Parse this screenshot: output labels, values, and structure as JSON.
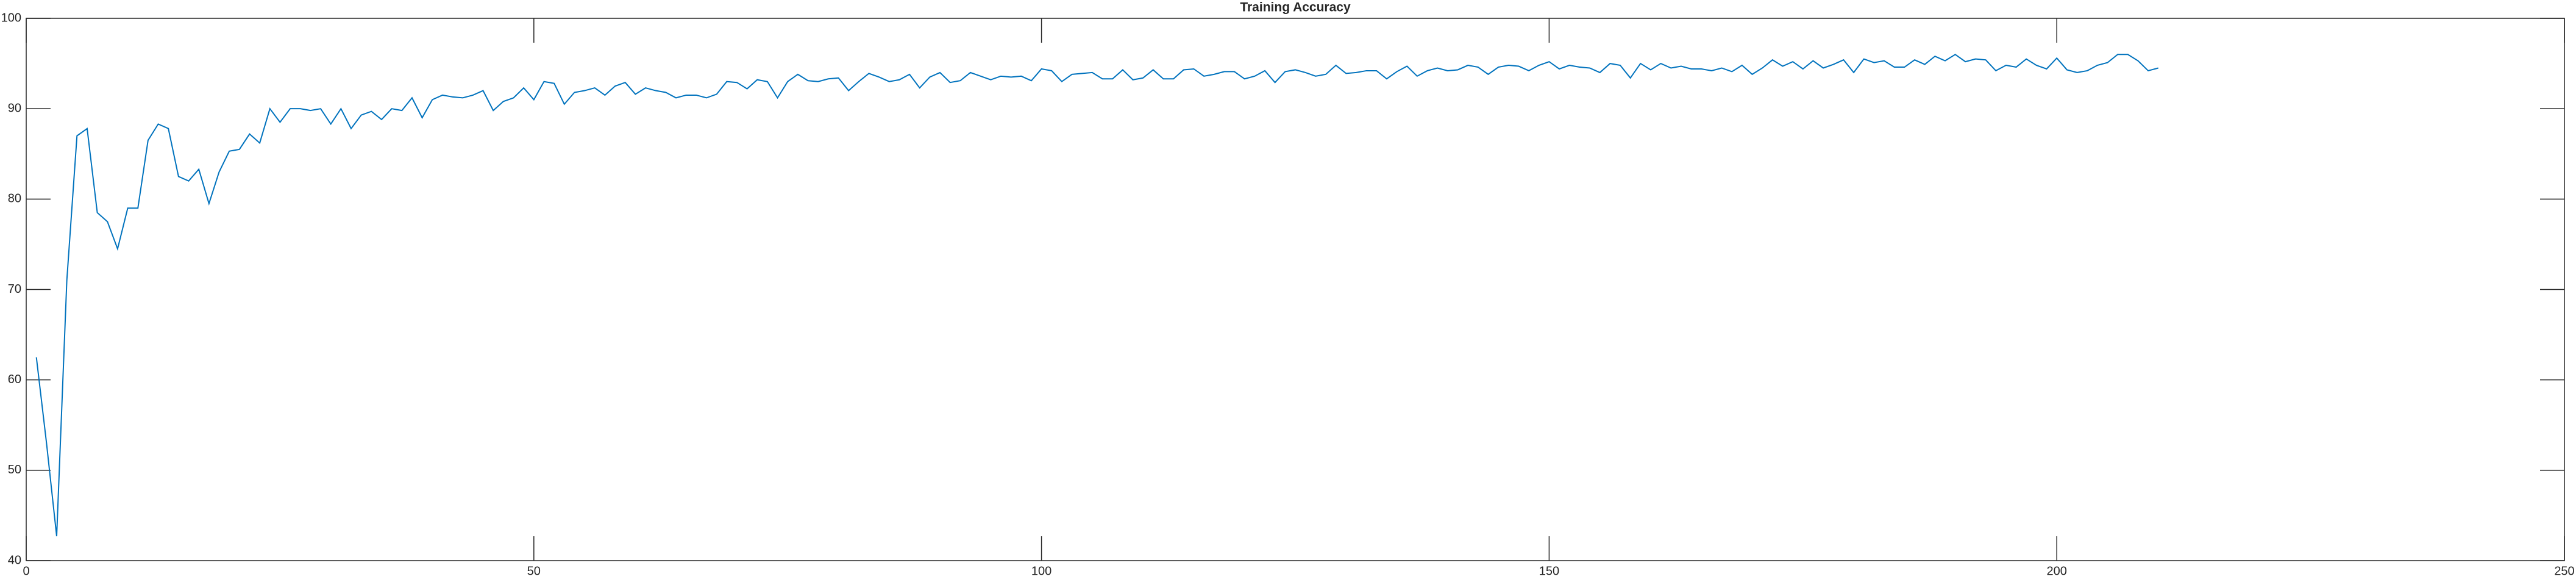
{
  "chart_data": {
    "type": "line",
    "title": "Training Accuracy",
    "x": [
      1,
      2,
      3,
      4,
      5,
      6,
      7,
      8,
      9,
      10,
      11,
      12,
      13,
      14,
      15,
      16,
      17,
      18,
      19,
      20,
      21,
      22,
      23,
      24,
      25,
      26,
      27,
      28,
      29,
      30,
      31,
      32,
      33,
      34,
      35,
      36,
      37,
      38,
      39,
      40,
      41,
      42,
      43,
      44,
      45,
      46,
      47,
      48,
      49,
      50,
      51,
      52,
      53,
      54,
      55,
      56,
      57,
      58,
      59,
      60,
      61,
      62,
      63,
      64,
      65,
      66,
      67,
      68,
      69,
      70,
      71,
      72,
      73,
      74,
      75,
      76,
      77,
      78,
      79,
      80,
      81,
      82,
      83,
      84,
      85,
      86,
      87,
      88,
      89,
      90,
      91,
      92,
      93,
      94,
      95,
      96,
      97,
      98,
      99,
      100,
      101,
      102,
      103,
      104,
      105,
      106,
      107,
      108,
      109,
      110,
      111,
      112,
      113,
      114,
      115,
      116,
      117,
      118,
      119,
      120,
      121,
      122,
      123,
      124,
      125,
      126,
      127,
      128,
      129,
      130,
      131,
      132,
      133,
      134,
      135,
      136,
      137,
      138,
      139,
      140,
      141,
      142,
      143,
      144,
      145,
      146,
      147,
      148,
      149,
      150,
      151,
      152,
      153,
      154,
      155,
      156,
      157,
      158,
      159,
      160,
      161,
      162,
      163,
      164,
      165,
      166,
      167,
      168,
      169,
      170,
      171,
      172,
      173,
      174,
      175,
      176,
      177,
      178,
      179,
      180,
      181,
      182,
      183,
      184,
      185,
      186,
      187,
      188,
      189,
      190,
      191,
      192,
      193,
      194,
      195,
      196,
      197,
      198,
      199,
      200,
      201,
      202,
      203,
      204,
      205,
      206,
      207,
      208,
      209,
      210
    ],
    "values": [
      62.5,
      53,
      42.7,
      71,
      87,
      87.8,
      78.5,
      77.5,
      74.5,
      79,
      79,
      86.5,
      88.3,
      87.8,
      82.5,
      82,
      83.3,
      79.5,
      83,
      85.3,
      85.5,
      87.2,
      86.2,
      90,
      88.5,
      90,
      90,
      89.8,
      90,
      88.3,
      90,
      87.8,
      89.3,
      89.7,
      88.8,
      90,
      89.8,
      91.2,
      89,
      91,
      91.5,
      91.3,
      91.2,
      91.5,
      92,
      89.8,
      90.8,
      91.2,
      92.3,
      91,
      93,
      92.8,
      90.5,
      91.8,
      92,
      92.3,
      91.5,
      92.5,
      92.9,
      91.6,
      92.3,
      92,
      91.8,
      91.2,
      91.5,
      91.5,
      91.2,
      91.6,
      93,
      92.9,
      92.2,
      93.2,
      93,
      91.2,
      93,
      93.8,
      93.1,
      93,
      93.3,
      93.4,
      92,
      93,
      93.9,
      93.5,
      93,
      93.2,
      93.8,
      92.3,
      93.5,
      94,
      92.9,
      93.1,
      94,
      93.6,
      93.2,
      93.6,
      93.5,
      93.6,
      93.1,
      94.4,
      94.2,
      93,
      93.8,
      93.9,
      94,
      93.3,
      93.3,
      94.3,
      93.2,
      93.4,
      94.3,
      93.3,
      93.3,
      94.3,
      94.4,
      93.6,
      93.8,
      94.1,
      94.1,
      93.3,
      93.6,
      94.2,
      92.9,
      94.1,
      94.3,
      94,
      93.6,
      93.8,
      94.8,
      93.9,
      94,
      94.2,
      94.2,
      93.3,
      94.1,
      94.7,
      93.6,
      94.2,
      94.5,
      94.2,
      94.3,
      94.8,
      94.6,
      93.8,
      94.6,
      94.8,
      94.7,
      94.2,
      94.8,
      95.2,
      94.4,
      94.8,
      94.6,
      94.5,
      94,
      95,
      94.8,
      93.4,
      95,
      94.3,
      95,
      94.5,
      94.7,
      94.4,
      94.4,
      94.2,
      94.5,
      94.1,
      94.8,
      93.8,
      94.5,
      95.4,
      94.7,
      95.2,
      94.4,
      95.3,
      94.5,
      94.9,
      95.4,
      94,
      95.5,
      95.1,
      95.3,
      94.6,
      94.6,
      95.4,
      94.9,
      95.8,
      95.3,
      96,
      95.2,
      95.5,
      95.4,
      94.2,
      94.8,
      94.6,
      95.5,
      94.8,
      94.4,
      95.6,
      94.3,
      94,
      94.2,
      94.8,
      95.1,
      96,
      96,
      95.3,
      94.2,
      94.5
    ],
    "color": "#0072bd",
    "xlim": [
      0,
      250
    ],
    "xticks": [
      0,
      50,
      100,
      150,
      200,
      250
    ],
    "ylim": [
      40,
      100
    ],
    "yticks": [
      40,
      50,
      60,
      70,
      80,
      90,
      100
    ]
  }
}
